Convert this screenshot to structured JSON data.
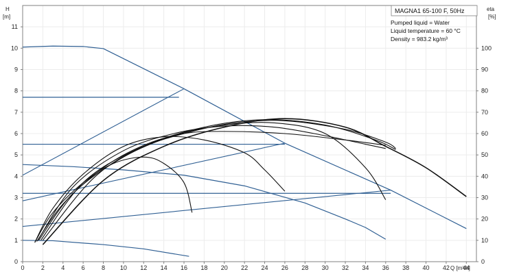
{
  "chart_data": {
    "type": "line",
    "title": "MAGNA1 65-100 F, 50Hz",
    "info_lines": [
      "Pumped liquid = Water",
      "Liquid temperature = 60 °C",
      "Density = 983.2 kg/m³"
    ],
    "xlabel": "Q [m³/h]",
    "ylabel_left": "H\n[m]",
    "ylabel_right": "eta\n[%]",
    "xlim": [
      0,
      45
    ],
    "ylim_left": [
      0,
      12
    ],
    "ylim_right": [
      0,
      120
    ],
    "x_ticks": [
      0,
      2,
      4,
      6,
      8,
      10,
      12,
      14,
      16,
      18,
      20,
      22,
      24,
      26,
      28,
      30,
      32,
      34,
      36,
      38,
      40,
      42,
      44
    ],
    "y_ticks_left": [
      0,
      1,
      2,
      3,
      4,
      5,
      6,
      7,
      8,
      9,
      10,
      11
    ],
    "y_ticks_right": [
      0,
      10,
      20,
      30,
      40,
      50,
      60,
      70,
      80,
      90,
      100
    ],
    "grid": true,
    "colors": {
      "pump_curve": "#2f5f93",
      "efficiency": "#111111",
      "frame": "#808080",
      "grid": "#ececec"
    },
    "series": [
      {
        "kind": "head",
        "points": [
          [
            0,
            10.05
          ],
          [
            3,
            10.1
          ],
          [
            6,
            10.08
          ],
          [
            8,
            9.98
          ],
          [
            16,
            8.1
          ],
          [
            26,
            5.55
          ],
          [
            36.5,
            3.35
          ],
          [
            44,
            1.55
          ]
        ]
      },
      {
        "kind": "head",
        "points": [
          [
            0,
            7.7
          ],
          [
            15.5,
            7.7
          ]
        ]
      },
      {
        "kind": "head",
        "points": [
          [
            0,
            5.5
          ],
          [
            26,
            5.5
          ]
        ]
      },
      {
        "kind": "head",
        "points": [
          [
            0,
            3.2
          ],
          [
            36.5,
            3.2
          ]
        ]
      },
      {
        "kind": "head",
        "points": [
          [
            0,
            1.0
          ],
          [
            3,
            0.98
          ],
          [
            8,
            0.8
          ],
          [
            12,
            0.6
          ],
          [
            16.5,
            0.25
          ]
        ]
      },
      {
        "kind": "head",
        "points": [
          [
            0,
            4.55
          ],
          [
            5,
            4.45
          ],
          [
            10,
            4.3
          ],
          [
            16,
            4.05
          ],
          [
            22,
            3.55
          ],
          [
            28,
            2.75
          ],
          [
            32,
            2.0
          ],
          [
            34,
            1.6
          ],
          [
            36,
            1.05
          ]
        ]
      },
      {
        "kind": "system",
        "points": [
          [
            0,
            4.05
          ],
          [
            16,
            8.1
          ]
        ]
      },
      {
        "kind": "system",
        "points": [
          [
            0,
            2.85
          ],
          [
            26,
            5.55
          ]
        ]
      },
      {
        "kind": "system",
        "points": [
          [
            0,
            1.65
          ],
          [
            36.5,
            3.35
          ]
        ]
      },
      {
        "kind": "eta",
        "points": [
          [
            1.2,
            0.9
          ],
          [
            3,
            2.3
          ],
          [
            6,
            3.7
          ],
          [
            9,
            4.6
          ],
          [
            12,
            4.9
          ],
          [
            14,
            4.6
          ],
          [
            16,
            3.7
          ],
          [
            16.8,
            2.3
          ]
        ]
      },
      {
        "kind": "eta",
        "points": [
          [
            1.2,
            0.9
          ],
          [
            3,
            2.5
          ],
          [
            6,
            4.1
          ],
          [
            10,
            5.4
          ],
          [
            14,
            5.85
          ],
          [
            18,
            5.7
          ],
          [
            22,
            5.1
          ],
          [
            24,
            4.3
          ],
          [
            26,
            3.3
          ]
        ]
      },
      {
        "kind": "eta",
        "points": [
          [
            1.4,
            0.95
          ],
          [
            4,
            2.7
          ],
          [
            8,
            4.4
          ],
          [
            12,
            5.45
          ],
          [
            16,
            6.0
          ],
          [
            20,
            6.1
          ],
          [
            26,
            6.0
          ],
          [
            32,
            5.7
          ],
          [
            36,
            5.45
          ]
        ]
      },
      {
        "kind": "eta",
        "points": [
          [
            1.5,
            1.0
          ],
          [
            5,
            3.5
          ],
          [
            10,
            5.2
          ],
          [
            15,
            6.0
          ],
          [
            20,
            6.35
          ],
          [
            25,
            6.3
          ],
          [
            30,
            5.9
          ],
          [
            34,
            5.5
          ],
          [
            36,
            5.3
          ]
        ]
      },
      {
        "kind": "eta",
        "points": [
          [
            1.6,
            1.0
          ],
          [
            5,
            3.2
          ],
          [
            10,
            4.9
          ],
          [
            15,
            5.9
          ],
          [
            20,
            6.4
          ],
          [
            25,
            6.5
          ],
          [
            30,
            6.0
          ],
          [
            34,
            4.4
          ],
          [
            36,
            2.9
          ]
        ]
      },
      {
        "kind": "eta",
        "points": [
          [
            1.8,
            1.0
          ],
          [
            6,
            3.7
          ],
          [
            11,
            5.2
          ],
          [
            16,
            6.0
          ],
          [
            21,
            6.5
          ],
          [
            26,
            6.6
          ],
          [
            32,
            6.2
          ],
          [
            36,
            5.6
          ],
          [
            37,
            5.3
          ]
        ]
      },
      {
        "kind": "eta",
        "points": [
          [
            2,
            1.0
          ],
          [
            7,
            3.9
          ],
          [
            12,
            5.4
          ],
          [
            18,
            6.3
          ],
          [
            24,
            6.65
          ],
          [
            30,
            6.4
          ],
          [
            35,
            5.7
          ],
          [
            37,
            5.25
          ]
        ]
      },
      {
        "kind": "eta",
        "points": [
          [
            2,
            0.8
          ],
          [
            8,
            3.8
          ],
          [
            14,
            5.4
          ],
          [
            20,
            6.3
          ],
          [
            26,
            6.7
          ],
          [
            32,
            6.3
          ],
          [
            36,
            5.4
          ],
          [
            40,
            4.4
          ],
          [
            44,
            3.05
          ]
        ]
      }
    ]
  }
}
